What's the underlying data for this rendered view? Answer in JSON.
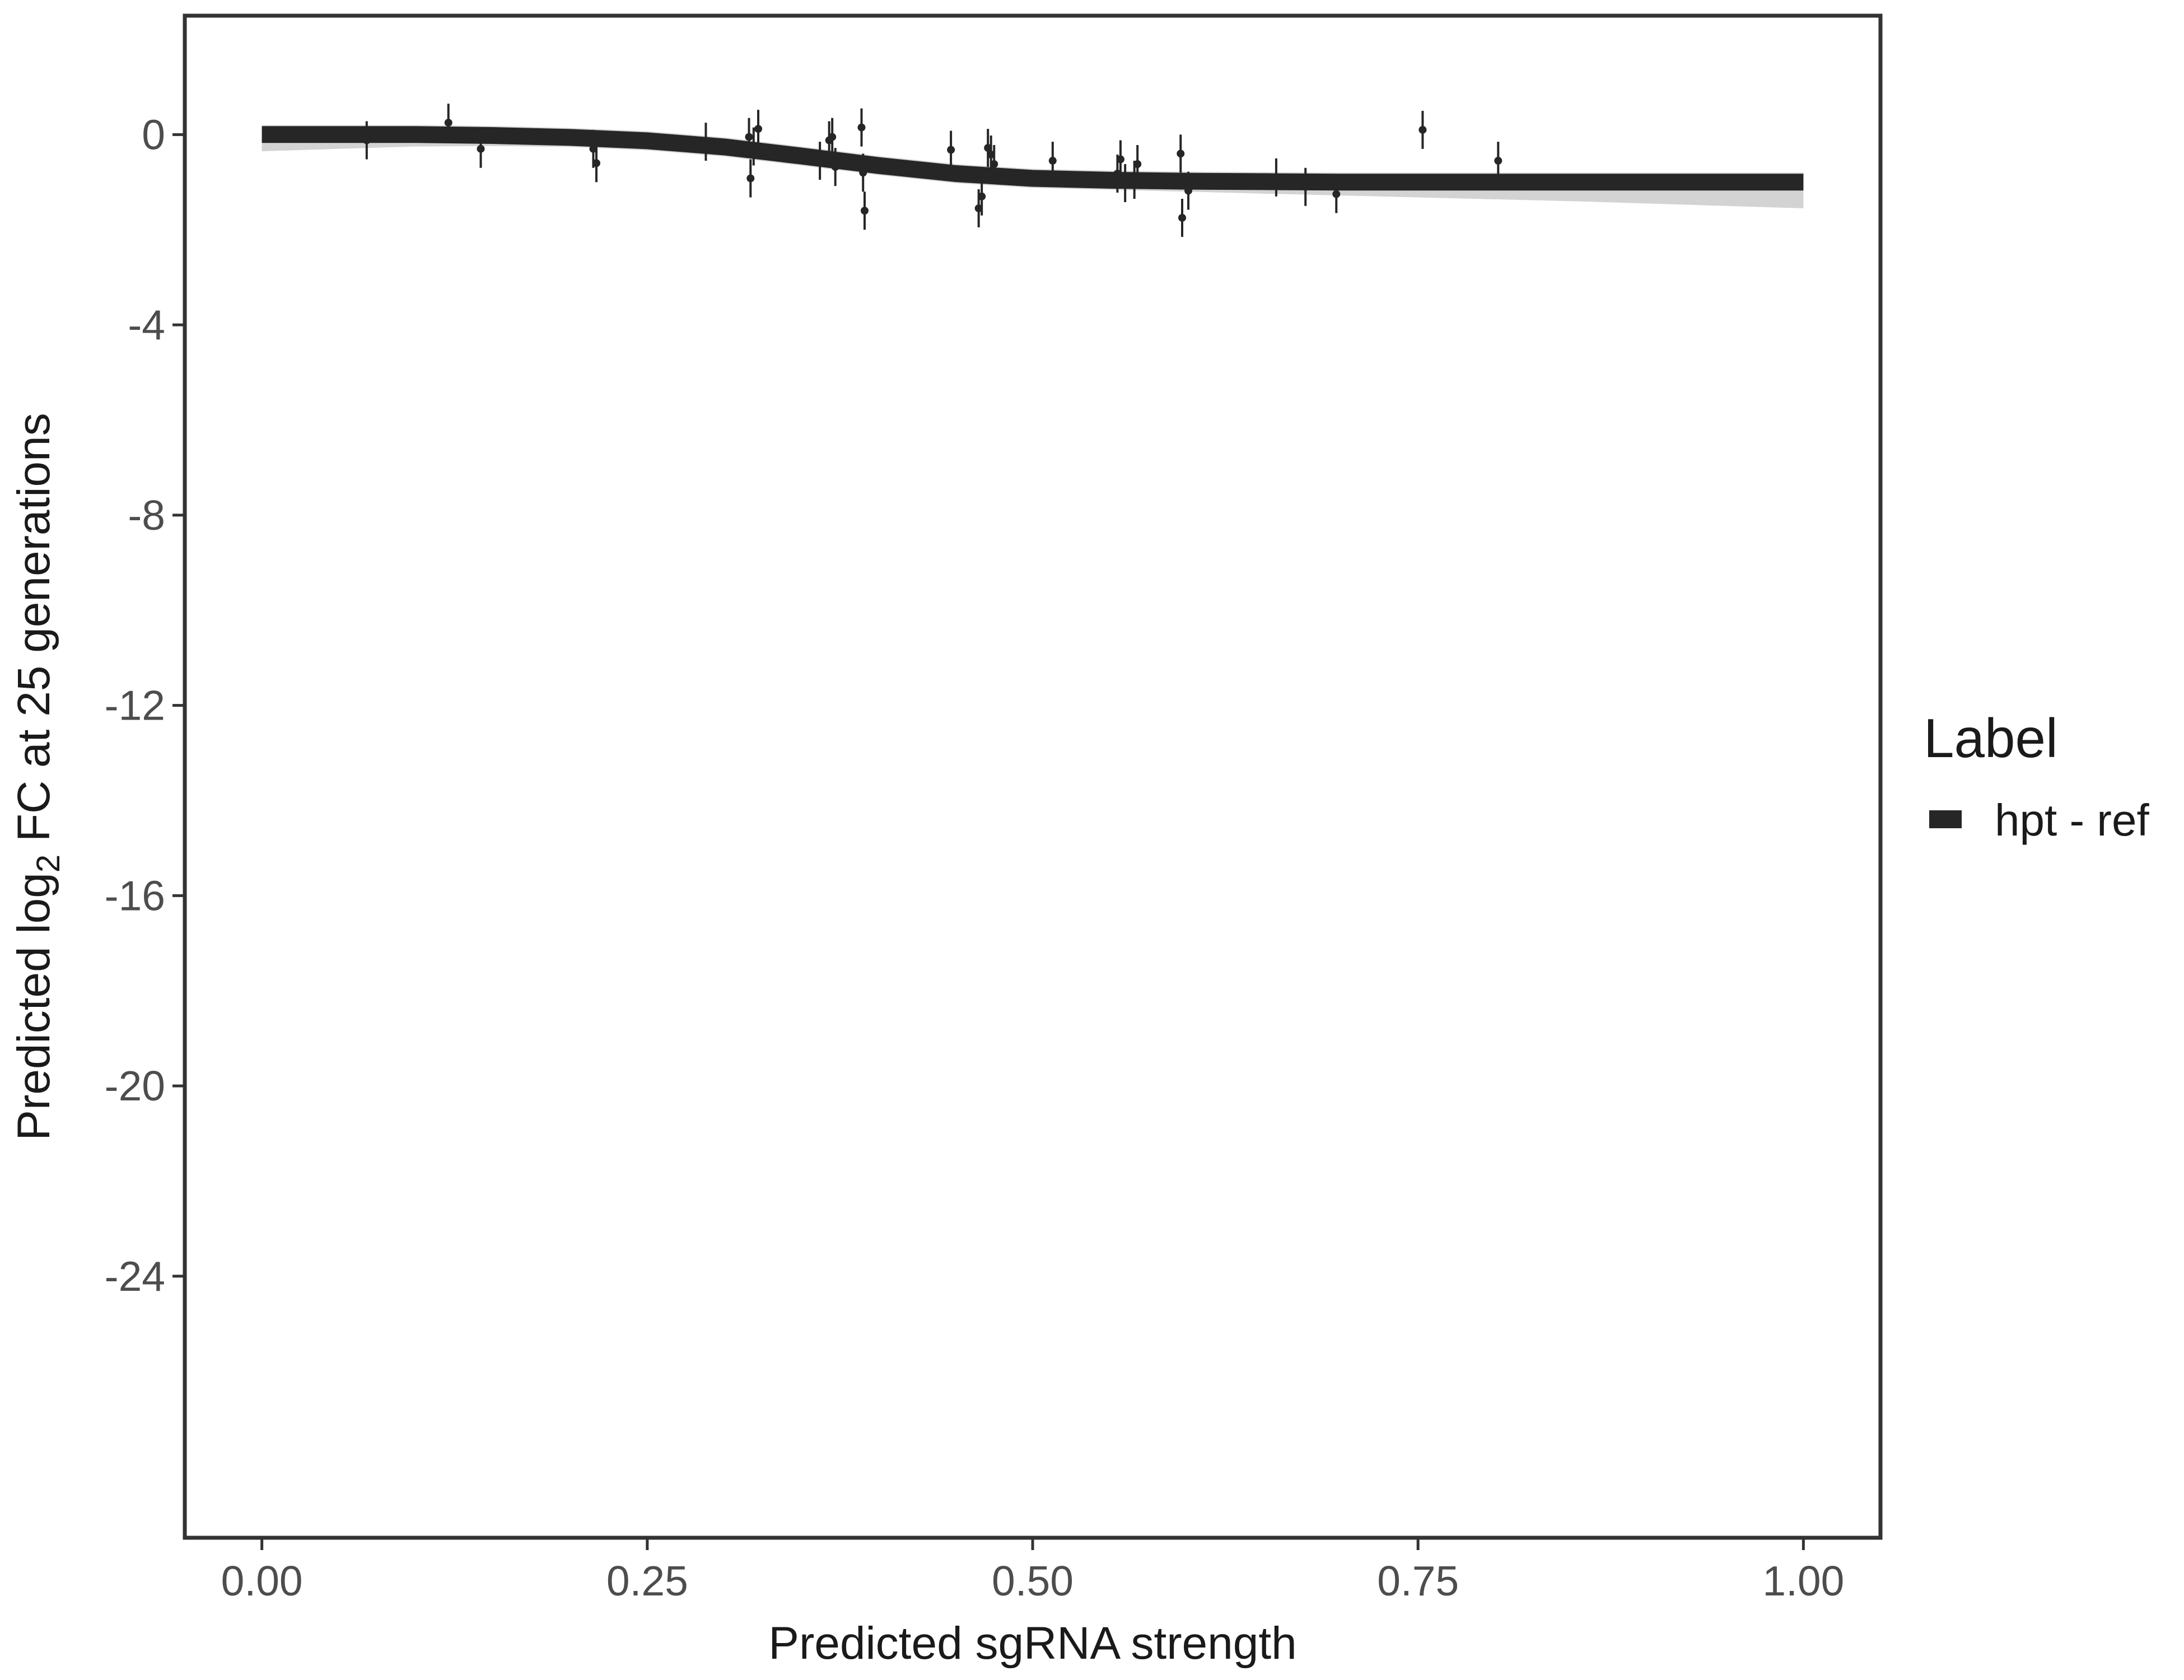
{
  "chart_data": {
    "type": "scatter",
    "title": "",
    "xlabel": "Predicted sgRNA strength",
    "ylabel_parts": {
      "prefix": "Predicted  log",
      "sub": "2",
      "suffix": " FC at 25 generations"
    },
    "xlim": [
      -0.05,
      1.05
    ],
    "ylim": [
      -29.5,
      2.5
    ],
    "x_ticks": [
      0,
      0.25,
      0.5,
      0.75,
      1
    ],
    "x_tick_labels": [
      "0.00",
      "0.25",
      "0.50",
      "0.75",
      "1.00"
    ],
    "y_ticks": [
      0,
      -4,
      -8,
      -12,
      -16,
      -20,
      -24
    ],
    "y_tick_labels": [
      "0",
      "-4",
      "-8",
      "-12",
      "-16",
      "-20",
      "-24"
    ],
    "grid": false,
    "legend": {
      "title": "Label",
      "placement": "right",
      "entries": [
        {
          "name": "hpt - ref",
          "color": "#262626"
        }
      ]
    },
    "fit_curve": {
      "color": "#262626",
      "band_color": "#9e9e9e",
      "x": [
        0,
        0.05,
        0.1,
        0.15,
        0.2,
        0.25,
        0.3,
        0.35,
        0.4,
        0.45,
        0.5,
        0.55,
        0.6,
        0.65,
        0.7,
        0.75,
        0.8,
        0.85,
        0.9,
        0.95,
        1.0
      ],
      "y": [
        0.0,
        0.0,
        0.0,
        -0.02,
        -0.06,
        -0.13,
        -0.26,
        -0.45,
        -0.65,
        -0.82,
        -0.92,
        -0.96,
        -0.98,
        -0.99,
        -1.0,
        -1.0,
        -1.0,
        -1.0,
        -1.0,
        -1.0,
        -1.0
      ],
      "band_upper": [
        0.2,
        0.2,
        0.2,
        0.18,
        0.14,
        0.07,
        -0.06,
        -0.25,
        -0.45,
        -0.62,
        -0.72,
        -0.76,
        -0.78,
        -0.79,
        -0.8,
        -0.8,
        -0.8,
        -0.8,
        -0.8,
        -0.8,
        -0.8
      ],
      "band_lower": [
        -0.35,
        -0.3,
        -0.25,
        -0.24,
        -0.26,
        -0.33,
        -0.46,
        -0.65,
        -0.85,
        -1.02,
        -1.12,
        -1.16,
        -1.2,
        -1.24,
        -1.28,
        -1.32,
        -1.36,
        -1.4,
        -1.45,
        -1.5,
        -1.55
      ]
    },
    "points": [
      {
        "x": 0.068,
        "y": -0.12,
        "lo": -0.52,
        "hi": 0.28
      },
      {
        "x": 0.121,
        "y": 0.25,
        "lo": -0.15,
        "hi": 0.65
      },
      {
        "x": 0.142,
        "y": -0.3,
        "lo": -0.7,
        "hi": 0.1
      },
      {
        "x": 0.215,
        "y": -0.3,
        "lo": -0.7,
        "hi": 0.1
      },
      {
        "x": 0.217,
        "y": -0.6,
        "lo": -1.0,
        "hi": -0.2
      },
      {
        "x": 0.288,
        "y": -0.15,
        "lo": -0.55,
        "hi": 0.25
      },
      {
        "x": 0.316,
        "y": -0.05,
        "lo": -0.45,
        "hi": 0.35
      },
      {
        "x": 0.317,
        "y": -0.92,
        "lo": -1.32,
        "hi": -0.52
      },
      {
        "x": 0.319,
        "y": -0.25,
        "lo": -0.65,
        "hi": 0.15
      },
      {
        "x": 0.322,
        "y": 0.12,
        "lo": -0.28,
        "hi": 0.52
      },
      {
        "x": 0.362,
        "y": -0.55,
        "lo": -0.95,
        "hi": -0.15
      },
      {
        "x": 0.368,
        "y": -0.12,
        "lo": -0.52,
        "hi": 0.28
      },
      {
        "x": 0.37,
        "y": -0.05,
        "lo": -0.45,
        "hi": 0.35
      },
      {
        "x": 0.372,
        "y": -0.68,
        "lo": -1.08,
        "hi": -0.28
      },
      {
        "x": 0.389,
        "y": 0.15,
        "lo": -0.25,
        "hi": 0.55
      },
      {
        "x": 0.39,
        "y": -0.8,
        "lo": -1.2,
        "hi": -0.4
      },
      {
        "x": 0.391,
        "y": -1.6,
        "lo": -2.0,
        "hi": -1.2
      },
      {
        "x": 0.447,
        "y": -0.32,
        "lo": -0.72,
        "hi": 0.08
      },
      {
        "x": 0.465,
        "y": -1.55,
        "lo": -1.95,
        "hi": -1.15
      },
      {
        "x": 0.467,
        "y": -1.3,
        "lo": -1.7,
        "hi": -0.9
      },
      {
        "x": 0.471,
        "y": -0.28,
        "lo": -0.68,
        "hi": 0.12
      },
      {
        "x": 0.473,
        "y": -0.42,
        "lo": -0.82,
        "hi": -0.02
      },
      {
        "x": 0.475,
        "y": -0.62,
        "lo": -1.02,
        "hi": -0.22
      },
      {
        "x": 0.513,
        "y": -0.55,
        "lo": -0.95,
        "hi": -0.15
      },
      {
        "x": 0.555,
        "y": -0.82,
        "lo": -1.22,
        "hi": -0.42
      },
      {
        "x": 0.557,
        "y": -0.52,
        "lo": -0.92,
        "hi": -0.12
      },
      {
        "x": 0.56,
        "y": -1.02,
        "lo": -1.42,
        "hi": -0.62
      },
      {
        "x": 0.566,
        "y": -0.95,
        "lo": -1.35,
        "hi": -0.55
      },
      {
        "x": 0.568,
        "y": -0.62,
        "lo": -1.02,
        "hi": -0.22
      },
      {
        "x": 0.596,
        "y": -0.4,
        "lo": -0.8,
        "hi": 0.0
      },
      {
        "x": 0.597,
        "y": -1.75,
        "lo": -2.15,
        "hi": -1.35
      },
      {
        "x": 0.601,
        "y": -1.18,
        "lo": -1.58,
        "hi": -0.78
      },
      {
        "x": 0.658,
        "y": -0.9,
        "lo": -1.3,
        "hi": -0.5
      },
      {
        "x": 0.677,
        "y": -1.1,
        "lo": -1.5,
        "hi": -0.7
      },
      {
        "x": 0.697,
        "y": -1.25,
        "lo": -1.65,
        "hi": -0.85
      },
      {
        "x": 0.753,
        "y": 0.1,
        "lo": -0.3,
        "hi": 0.5
      },
      {
        "x": 0.802,
        "y": -0.55,
        "lo": -0.95,
        "hi": -0.15
      }
    ]
  }
}
